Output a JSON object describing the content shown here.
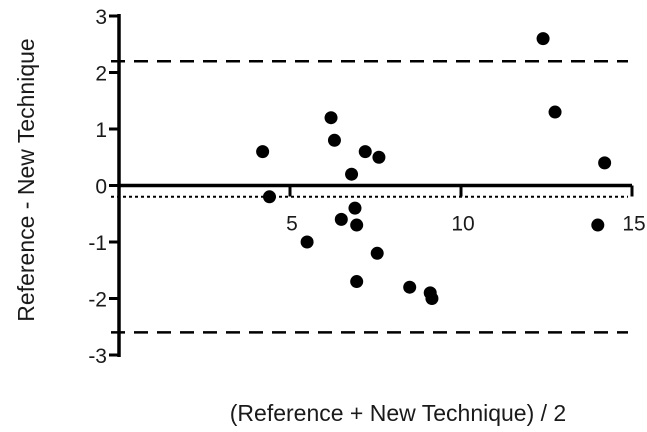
{
  "chart_data": {
    "type": "scatter",
    "xlabel": "(Reference + New Technique) / 2",
    "ylabel": "Reference - New Technique",
    "xlim": [
      0,
      15
    ],
    "ylim": [
      -3,
      3
    ],
    "xticks": [
      5,
      10,
      15
    ],
    "yticks": [
      3,
      2,
      1,
      0,
      -1,
      -2,
      -3
    ],
    "grid": false,
    "legend": "none",
    "reference_lines": [
      {
        "type": "upper-limit",
        "y": 2.2,
        "style": "dashed"
      },
      {
        "type": "mean-bias",
        "y": -0.2,
        "style": "dotted"
      },
      {
        "type": "lower-limit",
        "y": -2.6,
        "style": "dashed"
      }
    ],
    "points": [
      {
        "x": 4.2,
        "y": 0.6
      },
      {
        "x": 4.4,
        "y": -0.2
      },
      {
        "x": 5.5,
        "y": -1.0
      },
      {
        "x": 6.2,
        "y": 1.2
      },
      {
        "x": 6.3,
        "y": 0.8
      },
      {
        "x": 6.5,
        "y": -0.6
      },
      {
        "x": 6.8,
        "y": 0.2
      },
      {
        "x": 6.9,
        "y": -0.4
      },
      {
        "x": 6.95,
        "y": -0.7
      },
      {
        "x": 6.95,
        "y": -1.7
      },
      {
        "x": 7.2,
        "y": 0.6
      },
      {
        "x": 7.6,
        "y": 0.5
      },
      {
        "x": 7.55,
        "y": -1.2
      },
      {
        "x": 8.5,
        "y": -1.8
      },
      {
        "x": 9.1,
        "y": -1.9
      },
      {
        "x": 9.15,
        "y": -2.0
      },
      {
        "x": 12.4,
        "y": 2.6
      },
      {
        "x": 12.75,
        "y": 1.3
      },
      {
        "x": 14.0,
        "y": -0.7
      },
      {
        "x": 14.2,
        "y": 0.4
      }
    ],
    "colors": {
      "marker": "#000000",
      "axis": "#000000",
      "text": "#1a1a1a"
    }
  }
}
